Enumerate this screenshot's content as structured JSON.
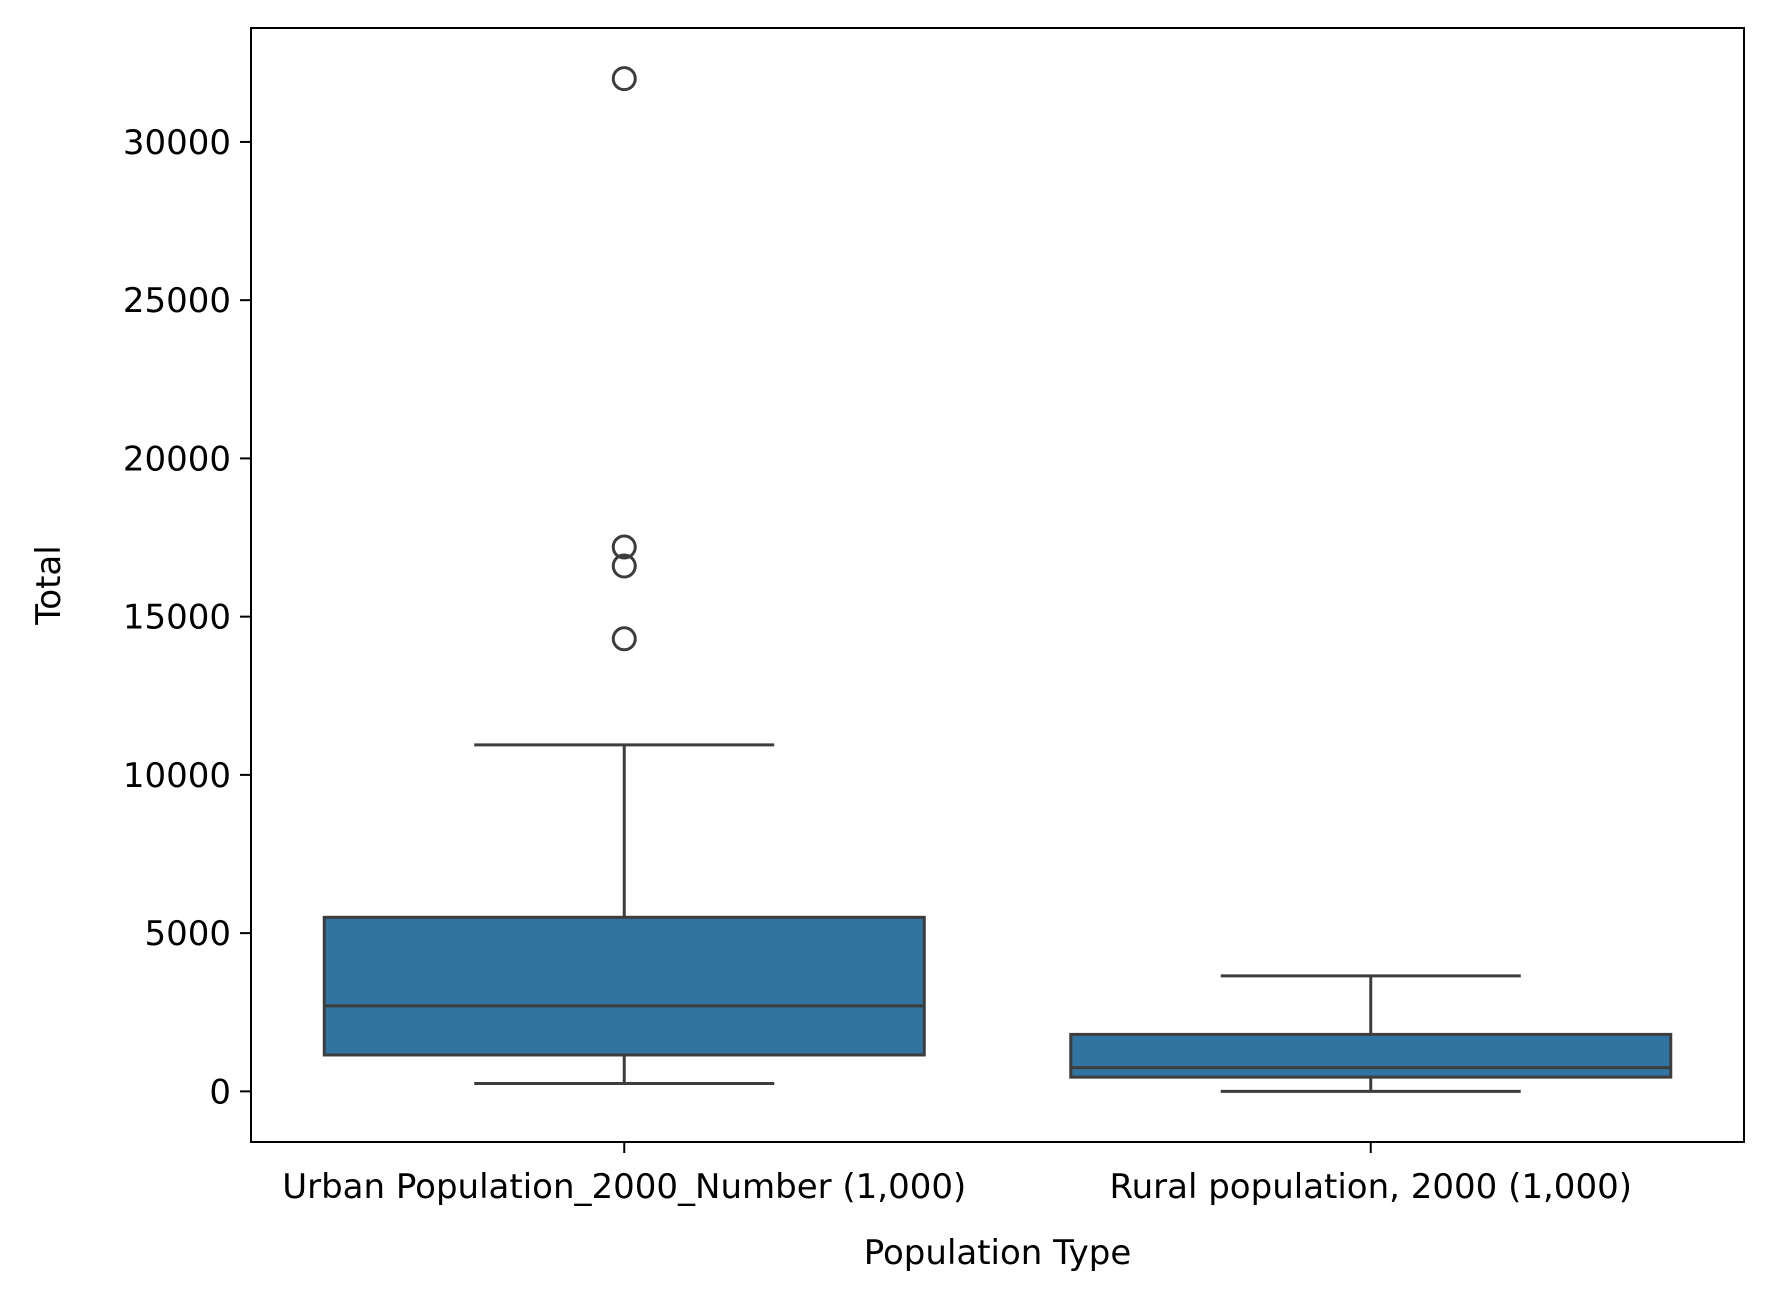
{
  "chart_data": {
    "type": "box",
    "title": "",
    "xlabel": "Population Type",
    "ylabel": "Total",
    "ylim": [
      -1600,
      33600
    ],
    "yticks": [
      0,
      5000,
      10000,
      15000,
      20000,
      25000,
      30000
    ],
    "categories": [
      "Urban Population_2000_Number (1,000)",
      "Rural population, 2000 (1,000)"
    ],
    "boxes": [
      {
        "category": "Urban Population_2000_Number (1,000)",
        "whisker_low": 250,
        "q1": 1150,
        "median": 2700,
        "q3": 5500,
        "whisker_high": 10950,
        "outliers": [
          14300,
          16600,
          17200,
          32000
        ]
      },
      {
        "category": "Rural population, 2000 (1,000)",
        "whisker_low": 0,
        "q1": 450,
        "median": 750,
        "q3": 1800,
        "whisker_high": 3650,
        "outliers": []
      }
    ],
    "grid": false,
    "legend": "none",
    "box_color": "#3274a1",
    "line_color": "#3d3d3d"
  }
}
